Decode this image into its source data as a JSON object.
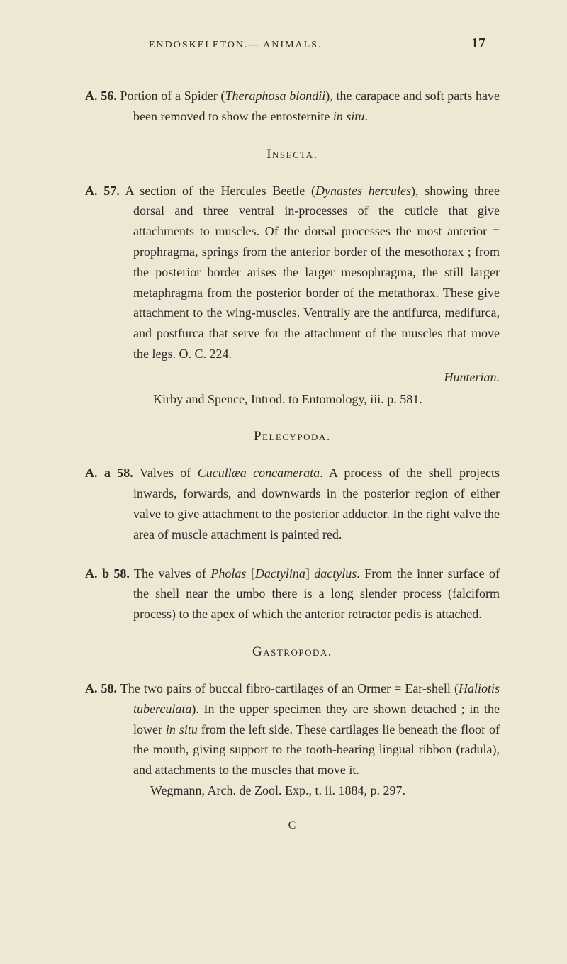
{
  "header": {
    "running_head": "ENDOSKELETON.— ANIMALS.",
    "page_number": "17"
  },
  "entries": {
    "a56": {
      "label": "A. 56.",
      "text": " Portion of a Spider (",
      "italic1": "Theraphosa blondii",
      "text2": "), the carapace and soft parts have been removed to show the entosternite ",
      "italic2": "in situ",
      "text3": "."
    },
    "insecta_heading": "Insecta.",
    "a57": {
      "label": "A. 57.",
      "text": " A section of the Hercules Beetle (",
      "italic1": "Dynastes hercules",
      "text2": "), showing three dorsal and three ventral in-processes of the cuticle that give attachments to muscles. Of the dorsal processes the most anterior = prophragma, springs from the anterior border of the mesothorax ; from the posterior border arises the larger mesophragma, the still larger metaphragma from the posterior border of the metathorax. These give attachment to the wing-muscles. Ventrally are the antifurca, medifurca, and postfurca that serve for the attachment of the muscles that move the legs.   O. C. 224.",
      "hunterian": "Hunterian.",
      "kirby": "Kirby and Spence, Introd. to Entomology, iii. p. 581."
    },
    "pelecypoda_heading": "Pelecypoda.",
    "a_a58": {
      "label": "A. a 58.",
      "text": " Valves of ",
      "italic1": "Cucullæa concamerata",
      "text2": ".   A process of the shell projects inwards, forwards, and downwards in the posterior region of either valve to give attachment to the posterior adductor. In the right valve the area of muscle attachment is painted red."
    },
    "a_b58": {
      "label": "A. b 58.",
      "text": " The valves of ",
      "italic1": "Pholas",
      "text2": " [",
      "italic2": "Dactylina",
      "text3": "] ",
      "italic3": "dactylus",
      "text4": ".   From the inner surface of the shell near the umbo there is a long slender process (falciform process) to the apex of which the anterior retractor pedis is attached."
    },
    "gastropoda_heading": "Gastropoda.",
    "a58": {
      "label": "A. 58.",
      "text": " The two pairs of buccal fibro-cartilages of an Ormer = Ear-shell (",
      "italic1": "Haliotis tuberculata",
      "text2": ").   In the upper specimen they are shown detached ; in the lower ",
      "italic2": "in situ",
      "text3": " from the left side. These cartilages lie beneath the floor of the mouth, giving support to the tooth-bearing lingual ribbon (radula), and attachments to the muscles that move it.",
      "wegmann": "Wegmann, Arch. de Zool. Exp., t. ii. 1884, p. 297."
    },
    "signature": "C"
  }
}
